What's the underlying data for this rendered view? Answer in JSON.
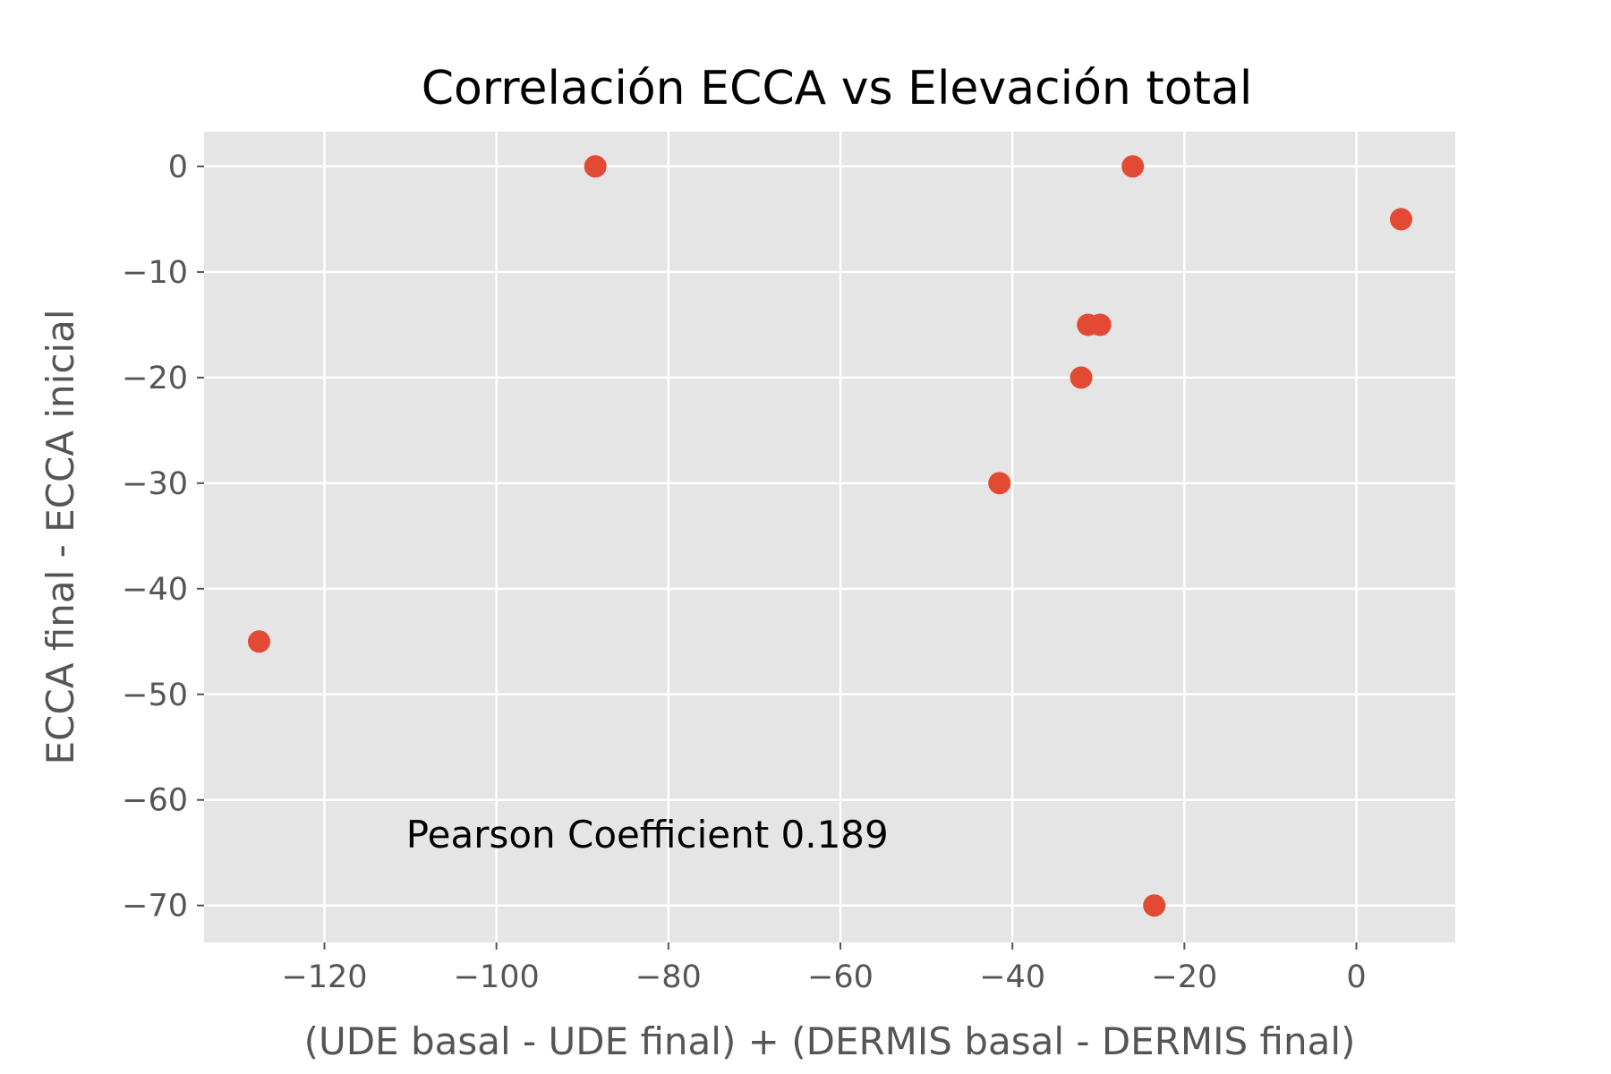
{
  "chart_data": {
    "type": "scatter",
    "title": "Correlación ECCA vs Elevación total",
    "xlabel": "(UDE basal - UDE final) + (DERMIS basal - DERMIS final)",
    "ylabel": "ECCA final - ECCA inicial",
    "xlim": [
      -134,
      11.5
    ],
    "ylim": [
      -73.5,
      3.3
    ],
    "xticks": [
      -120,
      -100,
      -80,
      -60,
      -40,
      -20,
      0
    ],
    "yticks": [
      0,
      -10,
      -20,
      -30,
      -40,
      -50,
      -60,
      -70
    ],
    "grid": true,
    "background": "#E5E5E5",
    "marker_color": "#E24A33",
    "points": [
      {
        "x": -127.6,
        "y": -45
      },
      {
        "x": -88.5,
        "y": 0
      },
      {
        "x": -41.5,
        "y": -30
      },
      {
        "x": -32.0,
        "y": -20
      },
      {
        "x": -31.2,
        "y": -15
      },
      {
        "x": -29.8,
        "y": -15
      },
      {
        "x": -26.0,
        "y": 0
      },
      {
        "x": -23.5,
        "y": -70
      },
      {
        "x": 5.2,
        "y": -5
      }
    ],
    "annotation": {
      "text": "Pearson Coefficient 0.189",
      "x": -110.5,
      "y": -64.5
    }
  }
}
